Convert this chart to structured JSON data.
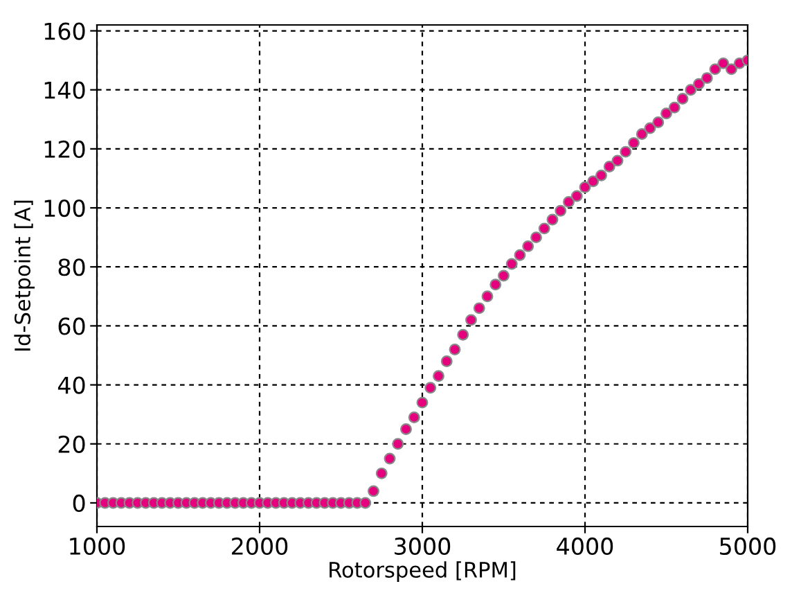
{
  "chart_data": {
    "type": "scatter",
    "xlabel": "Rotorspeed [RPM]",
    "ylabel": "Id-Setpoint [A]",
    "x": [
      1000,
      1050,
      1100,
      1150,
      1200,
      1250,
      1300,
      1350,
      1400,
      1450,
      1500,
      1550,
      1600,
      1650,
      1700,
      1750,
      1800,
      1850,
      1900,
      1950,
      2000,
      2050,
      2100,
      2150,
      2200,
      2250,
      2300,
      2350,
      2400,
      2450,
      2500,
      2550,
      2600,
      2650,
      2700,
      2750,
      2800,
      2850,
      2900,
      2950,
      3000,
      3050,
      3100,
      3150,
      3200,
      3250,
      3300,
      3350,
      3400,
      3450,
      3500,
      3550,
      3600,
      3650,
      3700,
      3750,
      3800,
      3850,
      3900,
      3950,
      4000,
      4050,
      4100,
      4150,
      4200,
      4250,
      4300,
      4350,
      4400,
      4450,
      4500,
      4550,
      4600,
      4650,
      4700,
      4750,
      4800,
      4850,
      4900,
      4950,
      5000
    ],
    "series": [
      {
        "color": "#e6007e",
        "values": [
          0,
          0,
          0,
          0,
          0,
          0,
          0,
          0,
          0,
          0,
          0,
          0,
          0,
          0,
          0,
          0,
          0,
          0,
          0,
          0,
          0,
          0,
          0,
          0,
          0,
          0,
          0,
          0,
          0,
          0,
          0,
          0,
          0,
          0,
          4,
          10,
          15,
          20,
          25,
          29,
          34,
          39,
          43,
          48,
          52,
          57,
          62,
          66,
          70,
          74,
          77,
          81,
          84,
          87,
          90,
          93,
          96,
          99,
          102,
          104,
          107,
          109,
          111,
          114,
          116,
          119,
          122,
          125,
          127,
          129,
          132,
          134,
          137,
          140,
          142,
          144,
          147,
          149,
          147,
          149,
          150
        ]
      }
    ],
    "xlim": [
      1000,
      5000
    ],
    "ylim": [
      -8,
      162
    ],
    "xticks": [
      1000,
      2000,
      3000,
      4000,
      5000
    ],
    "yticks": [
      0,
      20,
      40,
      60,
      80,
      100,
      120,
      140,
      160
    ],
    "grid": true,
    "marker": "circle"
  }
}
